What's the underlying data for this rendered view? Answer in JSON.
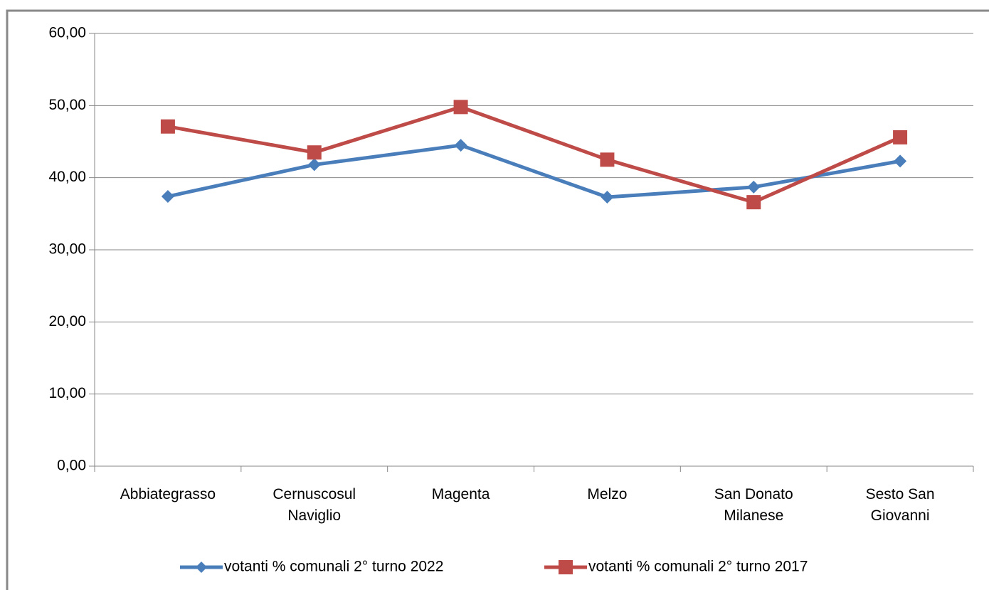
{
  "chart_data": {
    "type": "line",
    "categories": [
      "Abbiategrasso",
      "Cernuscosul\nNaviglio",
      "Magenta",
      "Melzo",
      "San Donato\nMilanese",
      "Sesto San\nGiovanni"
    ],
    "series": [
      {
        "name": "votanti % comunali 2° turno 2022",
        "color": "#4a7ebb",
        "marker": "diamond",
        "values": [
          37.4,
          41.8,
          44.5,
          37.3,
          38.7,
          42.3
        ]
      },
      {
        "name": "votanti % comunali 2° turno 2017",
        "color": "#be4b48",
        "marker": "square",
        "values": [
          47.1,
          43.5,
          49.8,
          42.5,
          36.6,
          45.6
        ]
      }
    ],
    "ylim": [
      0,
      60
    ],
    "yticks": [
      {
        "value": 0,
        "label": "0,00"
      },
      {
        "value": 10,
        "label": "10,00"
      },
      {
        "value": 20,
        "label": "20,00"
      },
      {
        "value": 30,
        "label": "30,00"
      },
      {
        "value": 40,
        "label": "40,00"
      },
      {
        "value": 50,
        "label": "50,00"
      },
      {
        "value": 60,
        "label": "60,00"
      }
    ],
    "grid": true,
    "legend": "bottom"
  }
}
